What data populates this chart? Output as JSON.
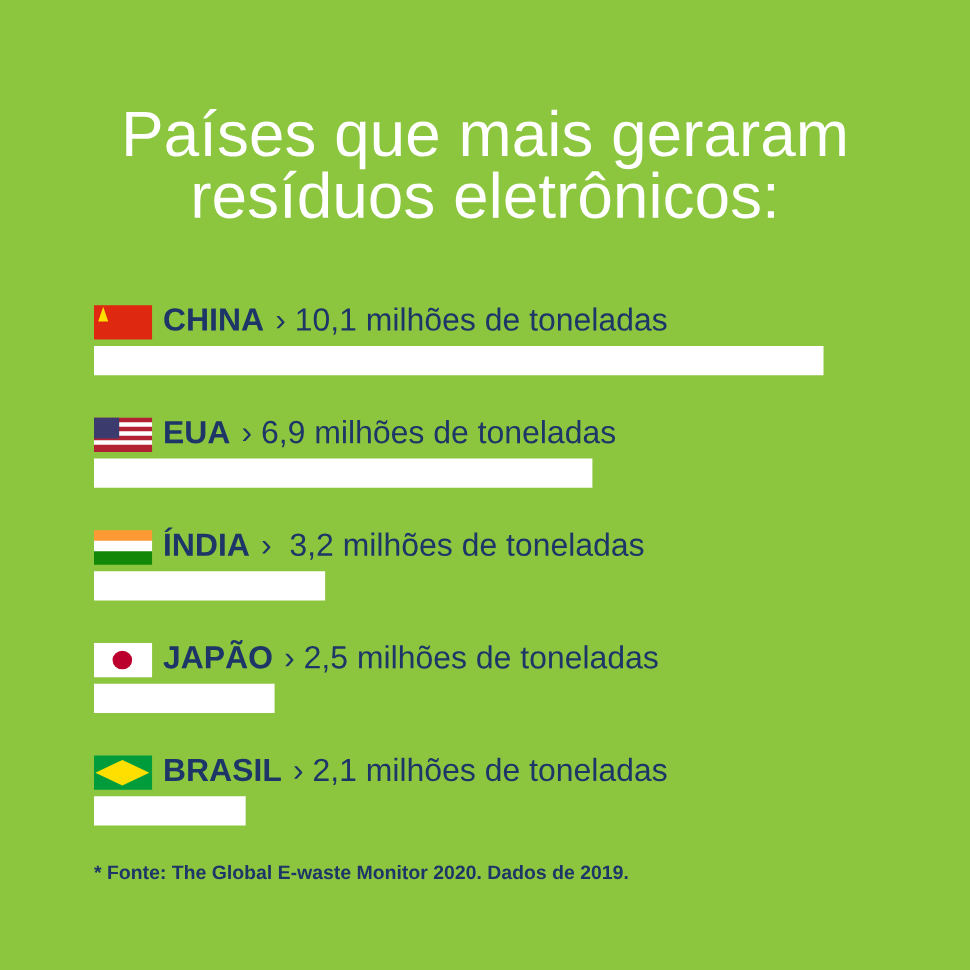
{
  "chart_data": {
    "type": "bar",
    "orientation": "horizontal",
    "title": "Países que mais geraram\nresíduos eletrônicos:",
    "categories": [
      "CHINA",
      "EUA",
      "ÍNDIA",
      "JAPÃO",
      "BRASIL"
    ],
    "values": [
      10.1,
      6.9,
      3.2,
      2.5,
      2.1
    ],
    "value_labels": [
      "› 10,1 milhões de toneladas",
      "› 6,9 milhões de toneladas",
      "›  3,2 milhões de toneladas",
      "› 2,5 milhões de toneladas",
      "› 2,1 milhões de toneladas"
    ],
    "color": "#ffffff",
    "legend": false,
    "annotations": [
      "* Fonte: The Global E-waste Monitor 2020. Dados de 2019."
    ]
  }
}
